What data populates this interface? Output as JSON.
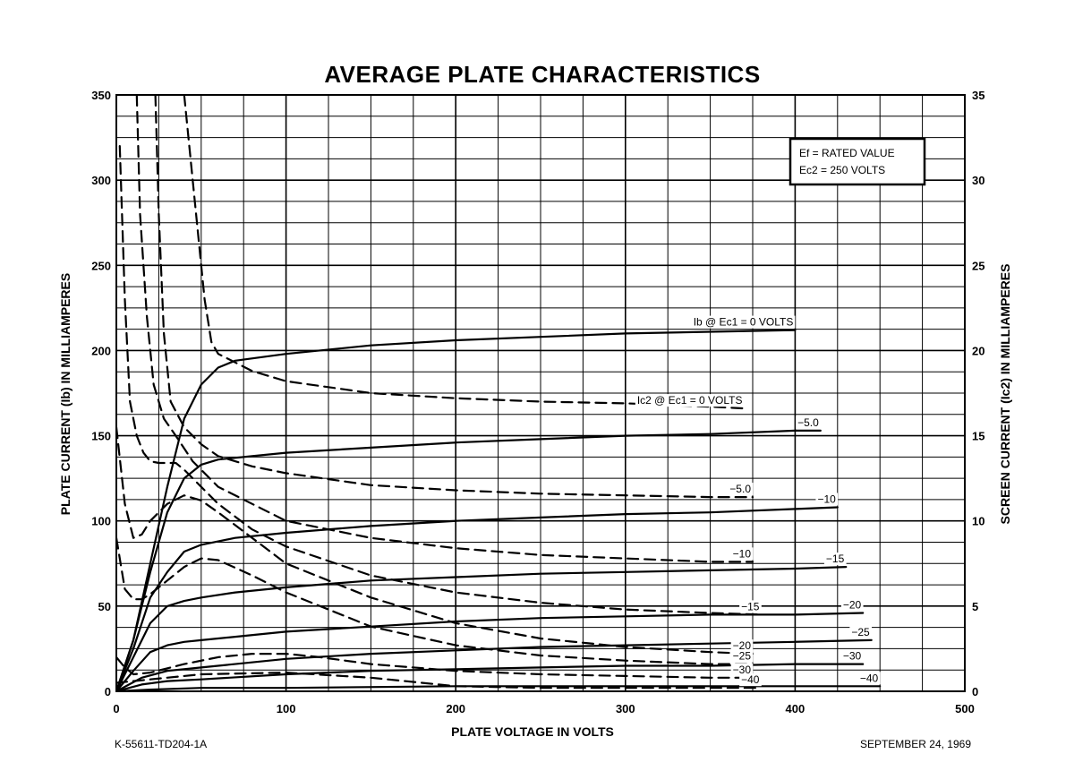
{
  "chart_data": {
    "type": "line",
    "title": "AVERAGE PLATE CHARACTERISTICS",
    "xlabel": "PLATE VOLTAGE IN VOLTS",
    "ylabel": "PLATE CURRENT (Ib) IN MILLIAMPERES",
    "y2label": "SCREEN CURRENT (Ic2) IN MILLIAMPERES",
    "xlim": [
      0,
      500
    ],
    "ylim": [
      0,
      350
    ],
    "y2lim": [
      0,
      35
    ],
    "x_ticks": [
      0,
      100,
      200,
      300,
      400,
      500
    ],
    "y_ticks": [
      0,
      50,
      100,
      150,
      200,
      250,
      300,
      350
    ],
    "y2_ticks": [
      0,
      5,
      10,
      15,
      20,
      25,
      30,
      35
    ],
    "grid": true,
    "conditions": [
      "Ef = RATED VALUE",
      "Ec2 = 250 VOLTS"
    ],
    "series": [
      {
        "name": "Ib @ Ec1 = 0 VOLTS",
        "label": "Ib @ Ec1 = 0 VOLTS",
        "kind": "plate",
        "style": "solid",
        "x": [
          0,
          10,
          20,
          30,
          40,
          50,
          55,
          60,
          70,
          100,
          150,
          200,
          250,
          300,
          350,
          400
        ],
        "y": [
          0,
          30,
          75,
          120,
          160,
          180,
          185,
          190,
          194,
          198,
          203,
          206,
          208,
          210,
          211,
          212
        ]
      },
      {
        "name": "-5.0",
        "label": "−5.0",
        "kind": "plate",
        "style": "solid",
        "x": [
          0,
          10,
          20,
          30,
          40,
          50,
          60,
          80,
          100,
          150,
          200,
          250,
          300,
          350,
          400,
          415
        ],
        "y": [
          0,
          30,
          70,
          105,
          125,
          133,
          136,
          138,
          140,
          143,
          146,
          148,
          150,
          151,
          153,
          153
        ]
      },
      {
        "name": "-10",
        "label": "−10",
        "kind": "plate",
        "style": "solid",
        "x": [
          0,
          10,
          20,
          30,
          40,
          50,
          70,
          100,
          150,
          200,
          250,
          300,
          350,
          400,
          425
        ],
        "y": [
          0,
          25,
          55,
          70,
          82,
          86,
          90,
          93,
          97,
          100,
          102,
          104,
          105,
          107,
          108
        ]
      },
      {
        "name": "-15",
        "label": "−15",
        "kind": "plate",
        "style": "solid",
        "x": [
          0,
          10,
          20,
          30,
          40,
          50,
          70,
          100,
          150,
          200,
          250,
          300,
          350,
          400,
          430
        ],
        "y": [
          0,
          20,
          40,
          50,
          53,
          55,
          58,
          61,
          65,
          67,
          69,
          70,
          71,
          72,
          73
        ]
      },
      {
        "name": "-20",
        "label": "−20",
        "kind": "plate",
        "style": "solid",
        "x": [
          0,
          10,
          20,
          30,
          40,
          50,
          70,
          100,
          150,
          200,
          250,
          300,
          350,
          400,
          440
        ],
        "y": [
          0,
          12,
          23,
          27,
          29,
          30,
          32,
          35,
          38,
          41,
          43,
          44,
          45,
          45,
          46
        ]
      },
      {
        "name": "-25",
        "label": "−25",
        "kind": "plate",
        "style": "solid",
        "x": [
          0,
          15,
          30,
          50,
          100,
          150,
          200,
          250,
          300,
          350,
          400,
          445
        ],
        "y": [
          0,
          8,
          12,
          14,
          19,
          22,
          24,
          26,
          27,
          28,
          29,
          30
        ]
      },
      {
        "name": "-30",
        "label": "−30",
        "kind": "plate",
        "style": "solid",
        "x": [
          0,
          15,
          30,
          50,
          100,
          150,
          200,
          250,
          300,
          350,
          400,
          440
        ],
        "y": [
          0,
          4,
          6,
          7,
          10,
          12,
          13,
          14,
          15,
          15,
          16,
          16
        ]
      },
      {
        "name": "-40",
        "label": "−40",
        "kind": "plate",
        "style": "solid",
        "x": [
          0,
          20,
          50,
          100,
          200,
          300,
          400,
          450
        ],
        "y": [
          0,
          1,
          2,
          2,
          3,
          3,
          3,
          3
        ]
      },
      {
        "name": "Ic2 @ Ec1 = 0 VOLTS",
        "label": "Ic2 @ Ec1 = 0 VOLTS",
        "kind": "screen",
        "style": "dashed",
        "x": [
          40,
          44,
          48,
          52,
          56,
          60,
          70,
          80,
          100,
          150,
          200,
          250,
          300,
          350,
          370
        ],
        "y": [
          35,
          31,
          27,
          23,
          20.5,
          19.8,
          19.3,
          18.8,
          18.2,
          17.5,
          17.2,
          17.0,
          16.9,
          16.7,
          16.6
        ]
      },
      {
        "name": "-5.0",
        "label": "−5.0",
        "kind": "screen",
        "style": "dashed",
        "x": [
          23,
          25,
          28,
          32,
          40,
          50,
          60,
          80,
          100,
          150,
          200,
          250,
          300,
          350,
          375
        ],
        "y": [
          35,
          28,
          21,
          17,
          15.5,
          14.5,
          13.8,
          13.2,
          12.8,
          12.1,
          11.8,
          11.6,
          11.5,
          11.4,
          11.4
        ]
      },
      {
        "name": "-10",
        "label": "−10",
        "kind": "screen",
        "style": "dashed",
        "x": [
          12,
          14,
          18,
          22,
          28,
          35,
          45,
          60,
          80,
          100,
          150,
          200,
          250,
          300,
          350,
          375
        ],
        "y": [
          35,
          28,
          22,
          18,
          16,
          15,
          13.5,
          12,
          11,
          10,
          9,
          8.4,
          8.0,
          7.8,
          7.6,
          7.6
        ]
      },
      {
        "name": "-15",
        "label": "−15",
        "kind": "screen",
        "style": "dashed",
        "x": [
          2,
          5,
          8,
          12,
          16,
          20,
          25,
          30,
          35,
          40,
          45,
          50,
          60,
          80,
          100,
          150,
          200,
          250,
          300,
          350,
          380
        ],
        "y": [
          32,
          23,
          17,
          15,
          14,
          13.5,
          13.4,
          13.4,
          13.4,
          13,
          12.5,
          12,
          11,
          9.5,
          8.5,
          6.8,
          5.8,
          5.2,
          4.8,
          4.6,
          4.5
        ]
      },
      {
        "name": "-20",
        "label": "−20",
        "kind": "screen",
        "style": "dashed",
        "x": [
          0,
          5,
          10,
          15,
          20,
          30,
          40,
          50,
          60,
          80,
          100,
          150,
          200,
          250,
          300,
          350,
          375
        ],
        "y": [
          15.5,
          11,
          9,
          9.2,
          10,
          11,
          11.5,
          11.2,
          10.5,
          9,
          7.5,
          5.5,
          4.0,
          3.1,
          2.6,
          2.3,
          2.2
        ]
      },
      {
        "name": "-25",
        "label": "−25",
        "kind": "screen",
        "style": "dashed",
        "x": [
          0,
          5,
          10,
          15,
          20,
          30,
          40,
          50,
          60,
          80,
          100,
          150,
          200,
          250,
          300,
          350,
          375
        ],
        "y": [
          9,
          6,
          5.4,
          5.4,
          5.7,
          6.5,
          7.3,
          7.8,
          7.7,
          6.8,
          5.8,
          3.8,
          2.7,
          2.1,
          1.8,
          1.6,
          1.6
        ]
      },
      {
        "name": "-30",
        "label": "−30",
        "kind": "screen",
        "style": "dashed",
        "x": [
          0,
          5,
          10,
          20,
          40,
          60,
          80,
          100,
          120,
          150,
          200,
          250,
          300,
          350,
          375
        ],
        "y": [
          2,
          1.4,
          1,
          1.1,
          1.6,
          2.0,
          2.2,
          2.2,
          2.0,
          1.6,
          1.2,
          1.0,
          0.9,
          0.8,
          0.8
        ]
      },
      {
        "name": "-40",
        "label": "−40",
        "kind": "screen",
        "style": "dashed",
        "x": [
          0,
          50,
          100,
          150,
          200,
          250,
          300,
          350,
          380
        ],
        "y": [
          0.5,
          1.0,
          1.1,
          0.8,
          0.3,
          0.2,
          0.2,
          0.2,
          0.2
        ]
      }
    ]
  },
  "info_box": {
    "line1": "Ef = RATED VALUE",
    "line2": "Ec2 = 250 VOLTS"
  },
  "footer": {
    "left": "K-55611-TD204-1A",
    "right": "SEPTEMBER 24, 1969"
  }
}
